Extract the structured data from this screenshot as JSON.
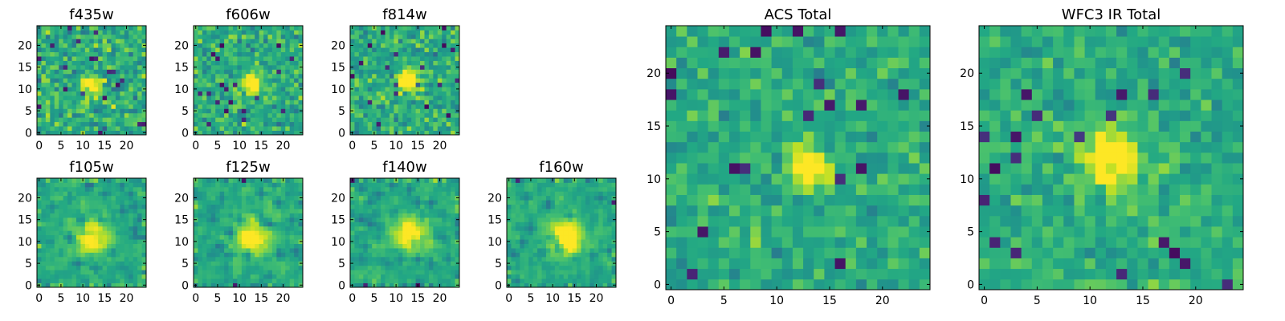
{
  "figure": {
    "background": "#ffffff"
  },
  "chart_data": [
    {
      "type": "heatmap",
      "title": "f435w",
      "grid_size": 25,
      "xlim": [
        0,
        24
      ],
      "ylim": [
        0,
        24
      ],
      "xticks": [
        0,
        5,
        10,
        15,
        20
      ],
      "yticks": [
        0,
        5,
        10,
        15,
        20
      ],
      "colormap": "viridis",
      "center": [
        12,
        11
      ],
      "seed": 11,
      "peak": 0.55,
      "sigma": 1.4,
      "noise": 0.32
    },
    {
      "type": "heatmap",
      "title": "f606w",
      "grid_size": 25,
      "xlim": [
        0,
        24
      ],
      "ylim": [
        0,
        24
      ],
      "xticks": [
        0,
        5,
        10,
        15,
        20
      ],
      "yticks": [
        0,
        5,
        10,
        15,
        20
      ],
      "colormap": "viridis",
      "center": [
        13,
        11
      ],
      "seed": 23,
      "peak": 0.7,
      "sigma": 1.5,
      "noise": 0.28
    },
    {
      "type": "heatmap",
      "title": "f814w",
      "grid_size": 25,
      "xlim": [
        0,
        24
      ],
      "ylim": [
        0,
        24
      ],
      "xticks": [
        0,
        5,
        10,
        15,
        20
      ],
      "yticks": [
        0,
        5,
        10,
        15,
        20
      ],
      "colormap": "viridis",
      "center": [
        13,
        12
      ],
      "seed": 37,
      "peak": 0.7,
      "sigma": 1.6,
      "noise": 0.28
    },
    {
      "type": "heatmap",
      "title": "f105w",
      "grid_size": 25,
      "xlim": [
        0,
        24
      ],
      "ylim": [
        0,
        24
      ],
      "xticks": [
        0,
        5,
        10,
        15,
        20
      ],
      "yticks": [
        0,
        5,
        10,
        15,
        20
      ],
      "colormap": "viridis",
      "center": [
        12,
        11
      ],
      "seed": 41,
      "peak": 0.45,
      "sigma": 2.6,
      "noise": 0.26
    },
    {
      "type": "heatmap",
      "title": "f125w",
      "grid_size": 25,
      "xlim": [
        0,
        24
      ],
      "ylim": [
        0,
        24
      ],
      "xticks": [
        0,
        5,
        10,
        15,
        20
      ],
      "yticks": [
        0,
        5,
        10,
        15,
        20
      ],
      "colormap": "viridis",
      "center": [
        13,
        11
      ],
      "seed": 53,
      "peak": 0.5,
      "sigma": 2.6,
      "noise": 0.26
    },
    {
      "type": "heatmap",
      "title": "f140w",
      "grid_size": 25,
      "xlim": [
        0,
        24
      ],
      "ylim": [
        0,
        24
      ],
      "xticks": [
        0,
        5,
        10,
        15,
        20
      ],
      "yticks": [
        0,
        5,
        10,
        15,
        20
      ],
      "colormap": "viridis",
      "center": [
        13,
        12
      ],
      "seed": 67,
      "peak": 0.5,
      "sigma": 2.6,
      "noise": 0.26
    },
    {
      "type": "heatmap",
      "title": "f160w",
      "grid_size": 25,
      "xlim": [
        0,
        24
      ],
      "ylim": [
        0,
        24
      ],
      "xticks": [
        0,
        5,
        10,
        15,
        20
      ],
      "yticks": [
        0,
        5,
        10,
        15,
        20
      ],
      "colormap": "viridis",
      "center": [
        13,
        11
      ],
      "seed": 79,
      "peak": 0.6,
      "sigma": 2.6,
      "noise": 0.24
    },
    {
      "type": "heatmap",
      "title": "ACS Total",
      "grid_size": 25,
      "xlim": [
        0,
        24
      ],
      "ylim": [
        0,
        24
      ],
      "xticks": [
        0,
        5,
        10,
        15,
        20
      ],
      "yticks": [
        0,
        5,
        10,
        15,
        20
      ],
      "colormap": "viridis",
      "center": [
        13,
        11
      ],
      "seed": 91,
      "peak": 0.55,
      "sigma": 1.3,
      "noise": 0.22
    },
    {
      "type": "heatmap",
      "title": "WFC3 IR Total",
      "grid_size": 25,
      "xlim": [
        0,
        24
      ],
      "ylim": [
        0,
        24
      ],
      "xticks": [
        0,
        5,
        10,
        15,
        20
      ],
      "yticks": [
        0,
        5,
        10,
        15,
        20
      ],
      "colormap": "viridis",
      "center": [
        12,
        12
      ],
      "seed": 103,
      "peak": 0.5,
      "sigma": 2.0,
      "noise": 0.2
    }
  ]
}
